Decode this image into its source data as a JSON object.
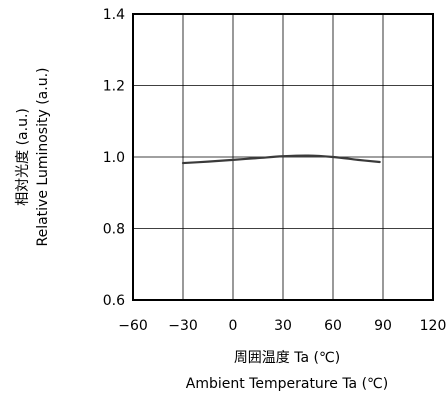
{
  "chart_data": {
    "type": "line",
    "xlabel": "周囲温度 Ta (℃)",
    "xlabel_en": "Ambient Temperature Ta (℃)",
    "ylabel": "相対光度 (a.u.)",
    "ylabel_en": "Relative Luminosity (a.u.)",
    "xlim": [
      -60,
      120
    ],
    "ylim": [
      0.6,
      1.4
    ],
    "x_ticks": [
      -60,
      -30,
      0,
      30,
      60,
      90,
      120
    ],
    "x_tick_labels": [
      "−60",
      "−30",
      "0",
      "30",
      "60",
      "90",
      "120"
    ],
    "y_ticks": [
      0.6,
      0.8,
      1.0,
      1.2,
      1.4
    ],
    "y_tick_labels": [
      "0.6",
      "0.8",
      "1.0",
      "1.2",
      "1.4"
    ],
    "grid": true,
    "series": [
      {
        "x": [
          -30,
          -15,
          0,
          15,
          30,
          45,
          60,
          75,
          88
        ],
        "values": [
          0.983,
          0.987,
          0.992,
          0.997,
          1.002,
          1.004,
          1.0,
          0.992,
          0.986
        ],
        "color": "#3a3a3a"
      }
    ]
  }
}
